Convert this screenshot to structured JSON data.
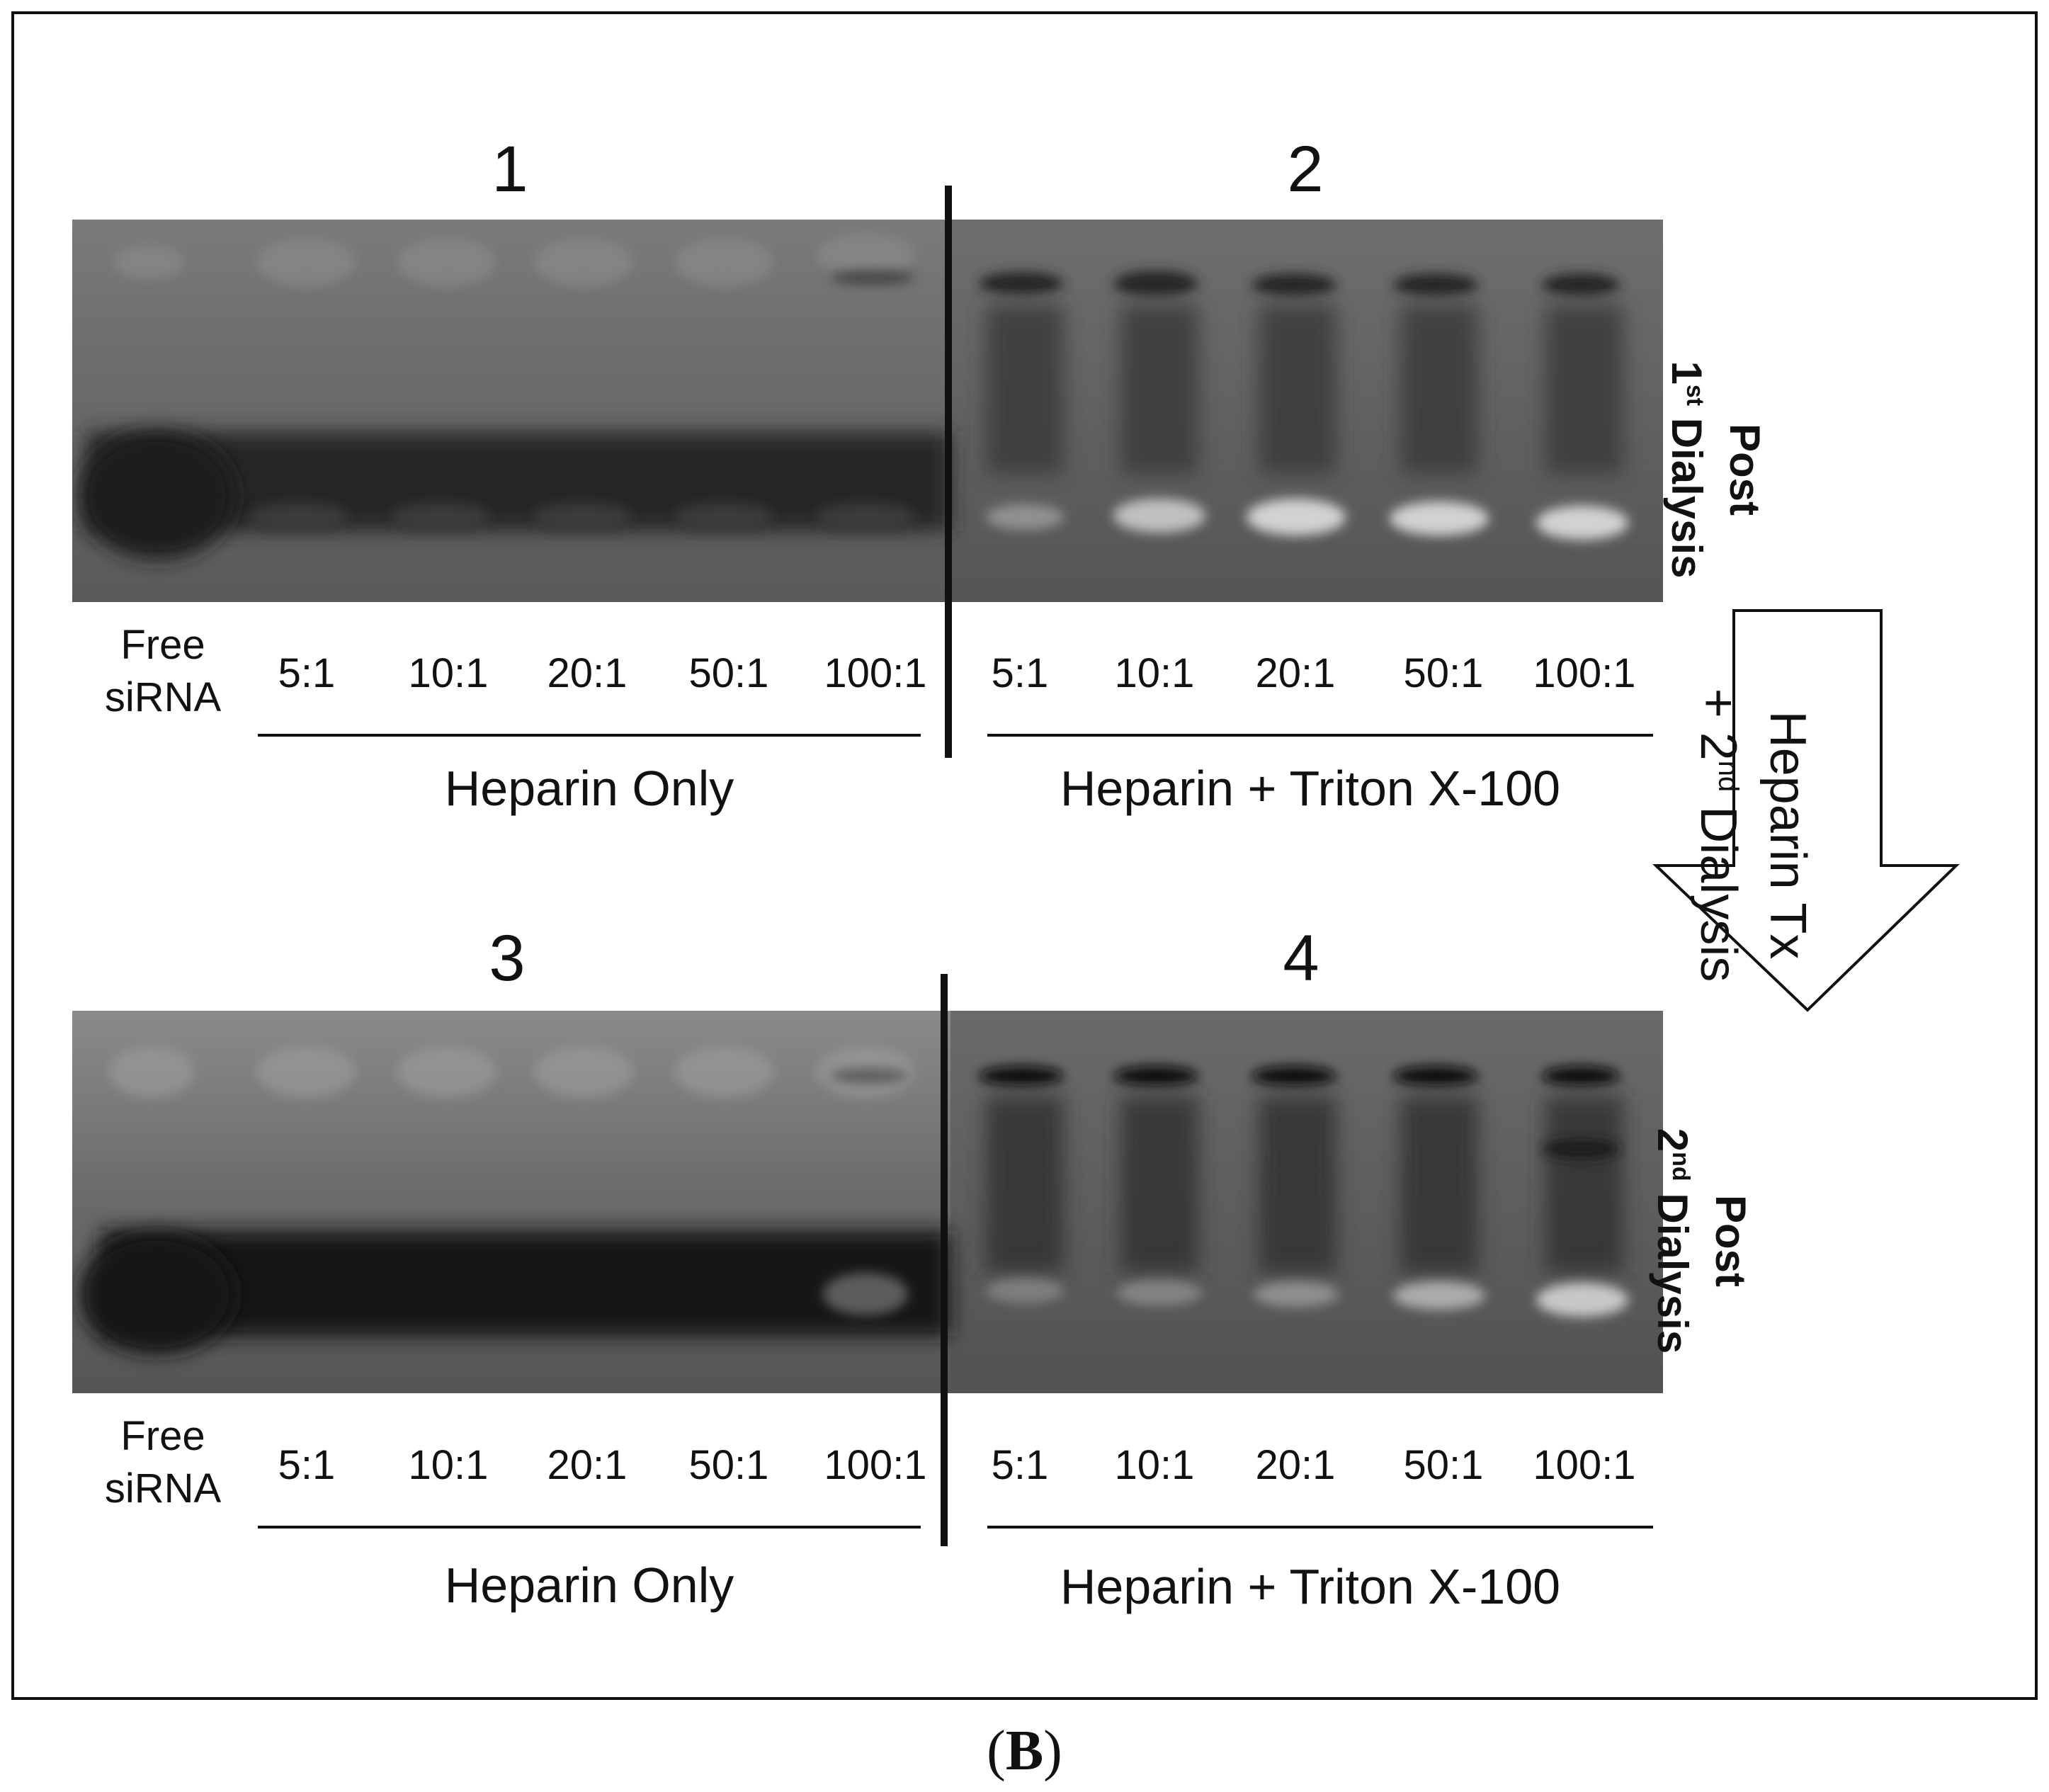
{
  "panels": [
    {
      "number": "1"
    },
    {
      "number": "2"
    },
    {
      "number": "3"
    },
    {
      "number": "4"
    }
  ],
  "gel_top": {
    "lane_labels_left": [
      "5:1",
      "10:1",
      "20:1",
      "50:1",
      "100:1"
    ],
    "lane_labels_right": [
      "5:1",
      "10:1",
      "20:1",
      "50:1",
      "100:1"
    ],
    "free_line1": "Free",
    "free_line2": "siRNA",
    "group_left": "Heparin Only",
    "group_right": "Heparin + Triton X-100",
    "side_label_line1": "Post",
    "side_label_line2_prefix": "1",
    "side_label_line2_sup": "st",
    "side_label_line2_suffix": " Dialysis"
  },
  "gel_bottom": {
    "lane_labels_left": [
      "5:1",
      "10:1",
      "20:1",
      "50:1",
      "100:1"
    ],
    "lane_labels_right": [
      "5:1",
      "10:1",
      "20:1",
      "50:1",
      "100:1"
    ],
    "free_line1": "Free",
    "free_line2": "siRNA",
    "group_left": "Heparin Only",
    "group_right": "Heparin + Triton X-100",
    "side_label_line1": "Post",
    "side_label_line2_prefix": "2",
    "side_label_line2_sup": "nd",
    "side_label_line2_suffix": " Dialysis"
  },
  "arrow": {
    "line1": "Heparin Tx",
    "line2_prefix": "+ 2",
    "line2_sup": "nd",
    "line2_suffix": " Dialysis"
  },
  "caption": {
    "open": "(",
    "letter": "B",
    "close": ")"
  },
  "colors": {
    "gel_background": "#5e5e5e",
    "dark_band": "#1c1c1c",
    "light_band": "#d6d6d6"
  }
}
